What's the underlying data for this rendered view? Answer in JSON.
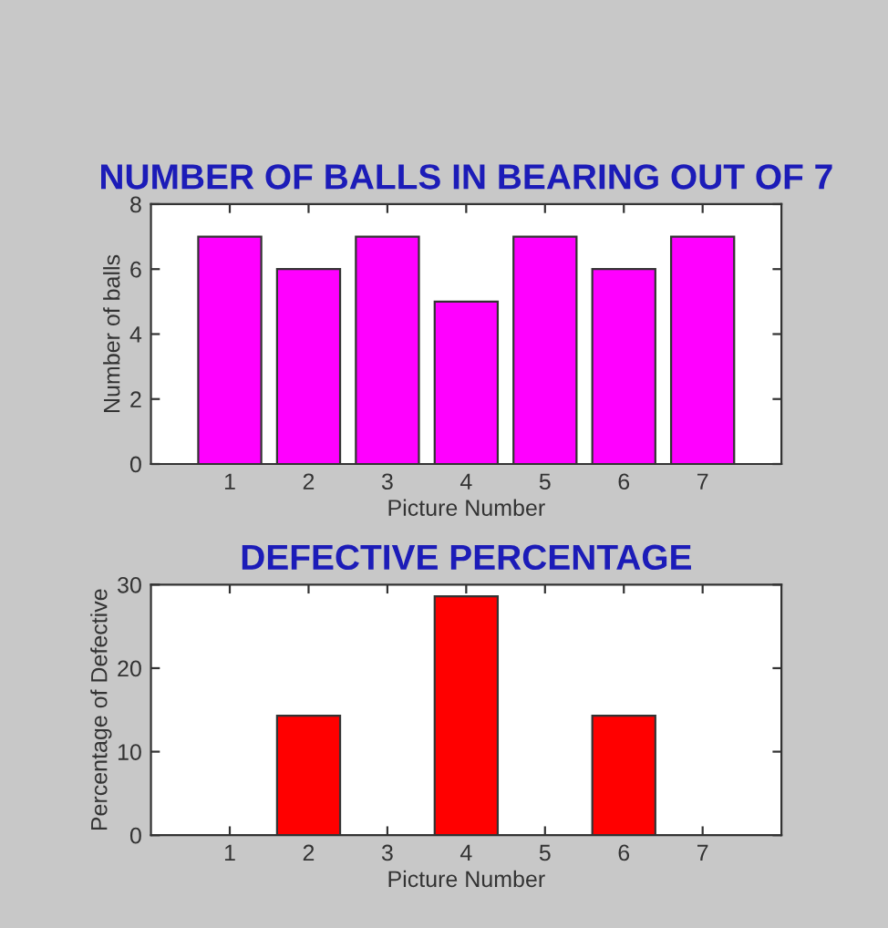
{
  "chart_data": [
    {
      "type": "bar",
      "title": "NUMBER OF BALLS IN BEARING OUT OF 7",
      "xlabel": "Picture Number",
      "ylabel": "Number of balls",
      "categories": [
        "1",
        "2",
        "3",
        "4",
        "5",
        "6",
        "7"
      ],
      "values": [
        7,
        6,
        7,
        5,
        7,
        6,
        7
      ],
      "color": "#ff00ff",
      "ylim": [
        0,
        8
      ],
      "yticks": [
        0,
        2,
        4,
        6,
        8
      ],
      "grid": false,
      "legend": false
    },
    {
      "type": "bar",
      "title": "DEFECTIVE PERCENTAGE",
      "xlabel": "Picture Number",
      "ylabel": "Percentage of Defective",
      "categories": [
        "1",
        "2",
        "3",
        "4",
        "5",
        "6",
        "7"
      ],
      "values": [
        0,
        14.3,
        0,
        28.6,
        0,
        14.3,
        0
      ],
      "color": "#ff0000",
      "ylim": [
        0,
        30
      ],
      "yticks": [
        0,
        10,
        20,
        30
      ],
      "grid": false,
      "legend": false
    }
  ]
}
